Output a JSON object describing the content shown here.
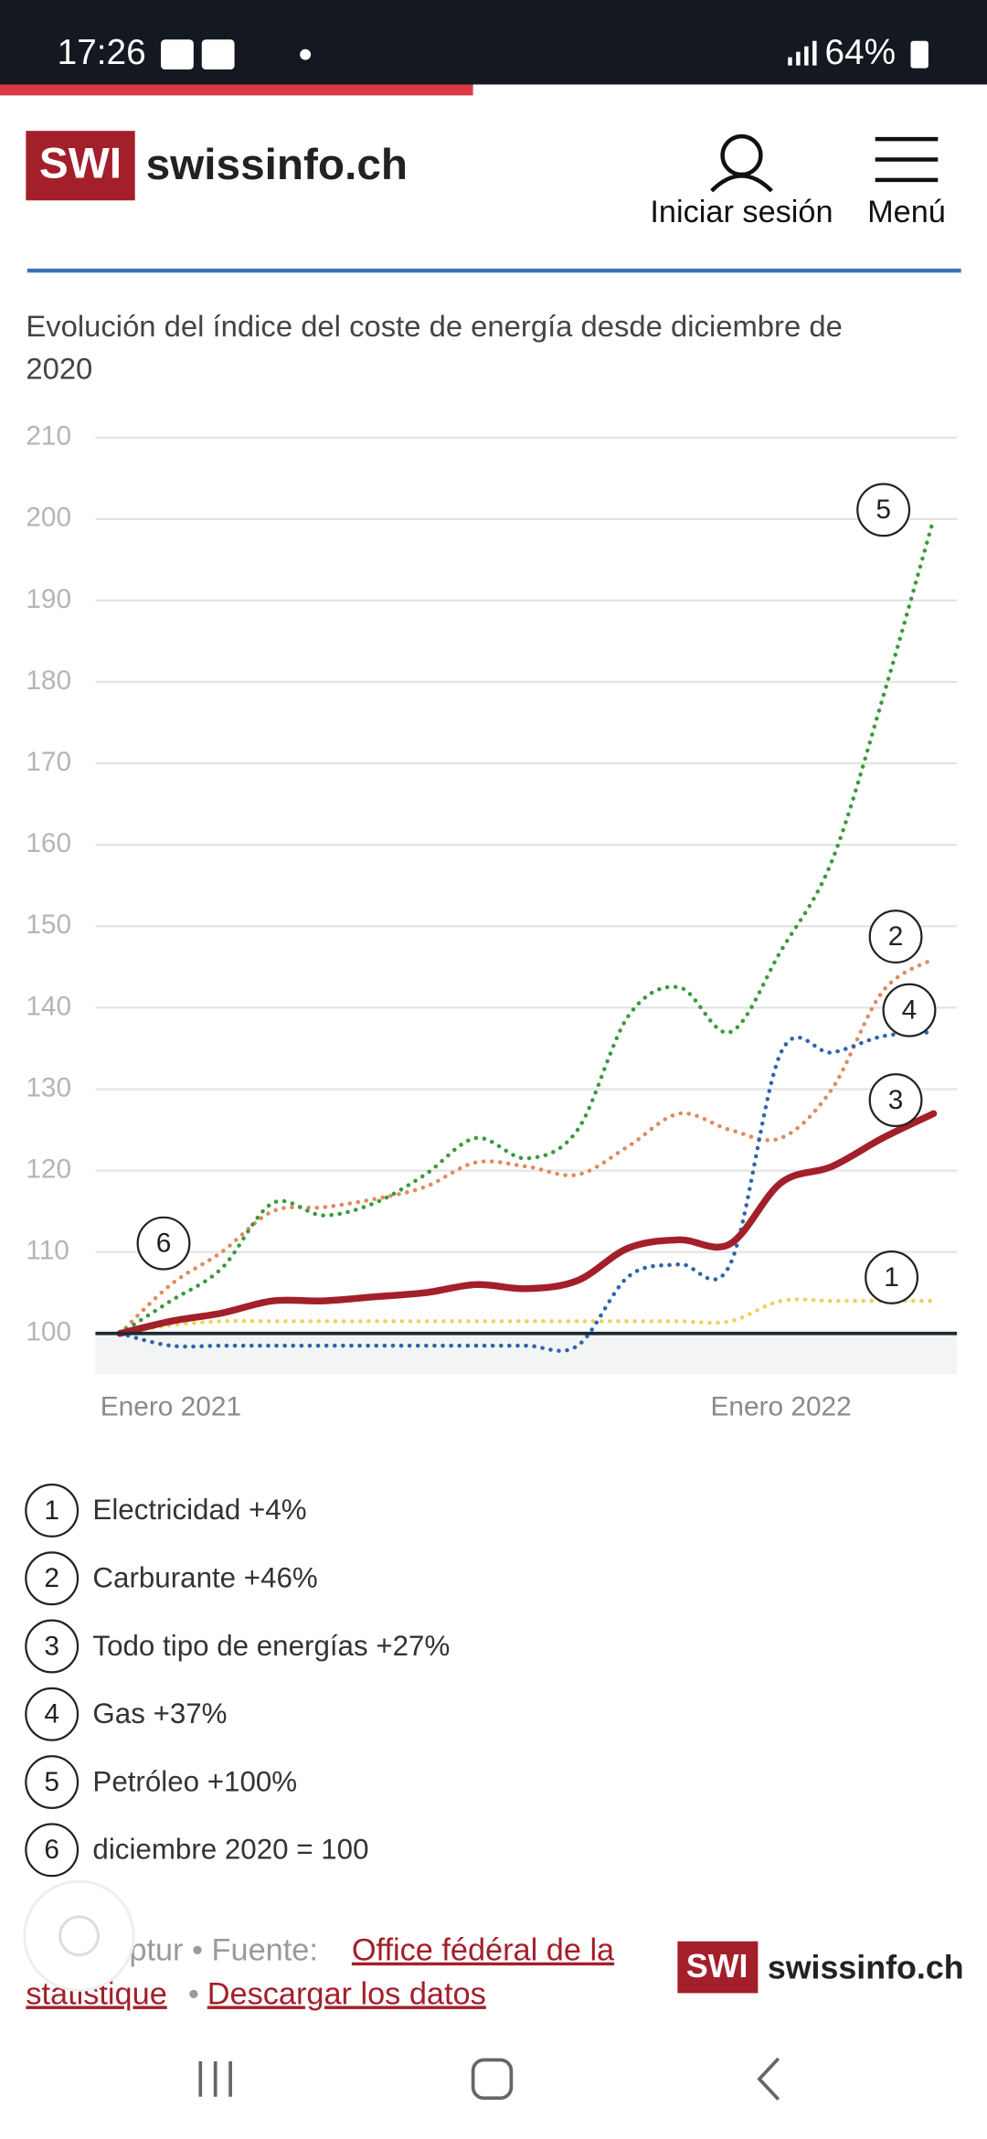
{
  "status_bar": {
    "time": "17:26",
    "battery": "64%"
  },
  "header": {
    "logo": "SWI",
    "site": "swissinfo.ch",
    "login": "Iniciar sesión",
    "menu": "Menú"
  },
  "chart_data": {
    "type": "line",
    "title": "Evolución del índice del coste de energía desde diciembre de",
    "title_line2": "2020",
    "categories": [
      null,
      "Enero 2021",
      null,
      null,
      null,
      null,
      null,
      null,
      null,
      null,
      null,
      null,
      null,
      "Enero 2022",
      null,
      null,
      null
    ],
    "ylim": [
      95,
      210
    ],
    "yticks": [
      100,
      110,
      120,
      130,
      140,
      150,
      160,
      170,
      180,
      190,
      200,
      210
    ],
    "grid": true,
    "series": [
      {
        "name": "Electricidad +4%",
        "marker": "1",
        "color": "#f0d25c",
        "style": "dotted",
        "values": [
          100,
          101,
          101.5,
          101.5,
          101.5,
          101.5,
          101.5,
          101.5,
          101.5,
          101.5,
          101.5,
          101.5,
          101.5,
          104,
          104,
          104,
          104
        ]
      },
      {
        "name": "Carburante +46%",
        "marker": "2",
        "color": "#e08a60",
        "style": "dotted",
        "values": [
          100,
          106,
          110,
          115,
          115.5,
          116.5,
          118,
          121,
          120.5,
          119.5,
          123,
          127,
          125,
          124,
          130,
          142,
          146
        ]
      },
      {
        "name": "Todo tipo de energías +27%",
        "marker": "3",
        "color": "#a31f2a",
        "style": "solid",
        "values": [
          100,
          101.5,
          102.5,
          104,
          104,
          104.5,
          105,
          106,
          105.5,
          106.5,
          110.5,
          111.5,
          111,
          118.5,
          120.5,
          124,
          127
        ]
      },
      {
        "name": "Gas +37%",
        "marker": "4",
        "color": "#2f64ac",
        "style": "dotted",
        "values": [
          100,
          98.5,
          98.5,
          98.5,
          98.5,
          98.5,
          98.5,
          98.5,
          98.5,
          98.5,
          107,
          108.5,
          108.5,
          134.5,
          134.5,
          136.5,
          137
        ]
      },
      {
        "name": "Petróleo +100%",
        "marker": "5",
        "color": "#3a9a3c",
        "style": "dotted",
        "values": [
          100,
          104,
          108,
          116,
          114.5,
          116,
          119.5,
          124,
          121.5,
          125,
          139,
          142.5,
          137,
          147,
          158,
          178,
          200
        ]
      }
    ],
    "base_note": {
      "marker": "6",
      "label": "diciembre 2020 = 100"
    }
  },
  "footer": {
    "credit": ": ptur • Fuente: ",
    "source_line1": "Office fédéral de la",
    "source_line2": "statistique",
    "separator": "•",
    "download": "Descargar los datos"
  }
}
